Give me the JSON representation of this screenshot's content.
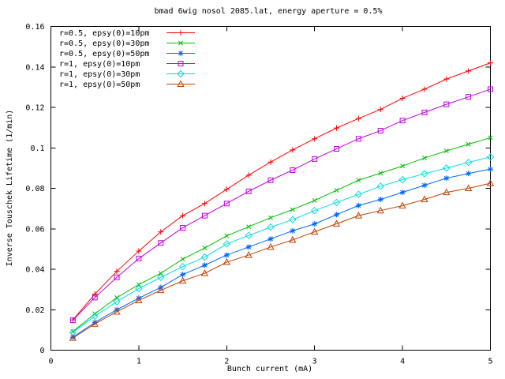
{
  "chart_data": {
    "type": "line",
    "title": "bmad 6wig nosol 2085.lat, energy aperture = 0.5%",
    "xlabel": "Bunch current (mA)",
    "ylabel": "Inverse Touschek Lifetime (1/min)",
    "xlim": [
      0,
      5
    ],
    "ylim": [
      0,
      0.16
    ],
    "x_ticks": [
      0,
      1,
      2,
      3,
      4,
      5
    ],
    "x_tick_labels": [
      "0",
      "1",
      "2",
      "3",
      "4",
      "5"
    ],
    "y_ticks": [
      0,
      0.02,
      0.04,
      0.06,
      0.08,
      0.1,
      0.12,
      0.14,
      0.16
    ],
    "y_tick_labels": [
      "0",
      "0.02",
      "0.04",
      "0.06",
      "0.08",
      "0.1",
      "0.12",
      "0.14",
      "0.16"
    ],
    "grid": false,
    "legend_position": "top-left",
    "tick_style": "inward-mirrored",
    "background_color": "#ffffff",
    "axis_color": "#000000",
    "x": [
      0.25,
      0.5,
      0.75,
      1,
      1.25,
      1.5,
      1.75,
      2,
      2.25,
      2.5,
      2.75,
      3,
      3.25,
      3.5,
      3.75,
      4,
      4.25,
      4.5,
      4.75,
      5
    ],
    "series": [
      {
        "name": "r=0.5, epsy(0)=10pm",
        "color": "#ff0000",
        "marker": "plus",
        "values": [
          0.015,
          0.0277,
          0.039,
          0.049,
          0.0585,
          0.0665,
          0.0725,
          0.0795,
          0.0865,
          0.093,
          0.099,
          0.1045,
          0.1098,
          0.1145,
          0.119,
          0.1245,
          0.129,
          0.134,
          0.138,
          0.142
        ]
      },
      {
        "name": "r=0.5, epsy(0)=30pm",
        "color": "#00c000",
        "marker": "cross",
        "values": [
          0.0092,
          0.018,
          0.026,
          0.0324,
          0.038,
          0.045,
          0.0505,
          0.0565,
          0.061,
          0.0655,
          0.0695,
          0.074,
          0.079,
          0.084,
          0.0875,
          0.091,
          0.095,
          0.0985,
          0.1018,
          0.105
        ]
      },
      {
        "name": "r=0.5, epsy(0)=50pm",
        "color": "#0066ff",
        "marker": "asterisk",
        "values": [
          0.0064,
          0.0137,
          0.02,
          0.0257,
          0.031,
          0.0374,
          0.042,
          0.047,
          0.051,
          0.055,
          0.059,
          0.0624,
          0.067,
          0.0715,
          0.0745,
          0.078,
          0.0815,
          0.085,
          0.0873,
          0.0895
        ]
      },
      {
        "name": "r=1, epsy(0)=10pm",
        "color": "#c000e0",
        "marker": "square",
        "values": [
          0.0148,
          0.026,
          0.036,
          0.0453,
          0.053,
          0.0605,
          0.0665,
          0.0725,
          0.0785,
          0.084,
          0.089,
          0.0945,
          0.0995,
          0.1045,
          0.1085,
          0.1135,
          0.1175,
          0.1215,
          0.1252,
          0.129
        ]
      },
      {
        "name": "r=1, epsy(0)=30pm",
        "color": "#00dddd",
        "marker": "diamond",
        "values": [
          0.0088,
          0.0168,
          0.024,
          0.0304,
          0.036,
          0.0413,
          0.046,
          0.0525,
          0.0567,
          0.0608,
          0.0645,
          0.069,
          0.073,
          0.077,
          0.081,
          0.0843,
          0.0872,
          0.09,
          0.0928,
          0.0955
        ]
      },
      {
        "name": "r=1, epsy(0)=50pm",
        "color": "#c04000",
        "marker": "triangle",
        "values": [
          0.006,
          0.013,
          0.019,
          0.0246,
          0.0296,
          0.0343,
          0.038,
          0.0435,
          0.047,
          0.051,
          0.0545,
          0.0585,
          0.0625,
          0.0665,
          0.069,
          0.0714,
          0.0745,
          0.078,
          0.08,
          0.0825
        ]
      }
    ]
  }
}
